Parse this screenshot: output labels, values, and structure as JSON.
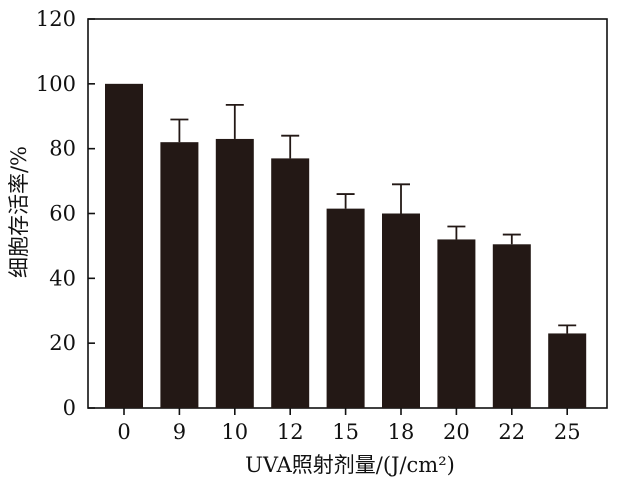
{
  "chart_data": {
    "type": "bar",
    "categories": [
      "0",
      "9",
      "10",
      "12",
      "15",
      "18",
      "20",
      "22",
      "25"
    ],
    "values": [
      100,
      82,
      83,
      77,
      61.5,
      60,
      52,
      50.5,
      23
    ],
    "error_bars": [
      0,
      7,
      10.5,
      7,
      4.5,
      9,
      4,
      3,
      2.5
    ],
    "xlabel": "UVA照射剂量/(J/cm²)",
    "ylabel": "细胞存活率/%",
    "ylim": [
      0,
      120
    ],
    "yticks": [
      0,
      20,
      40,
      60,
      80,
      100,
      120
    ],
    "grid": false,
    "bar_color": "#231815",
    "axis_color": "#111111"
  }
}
